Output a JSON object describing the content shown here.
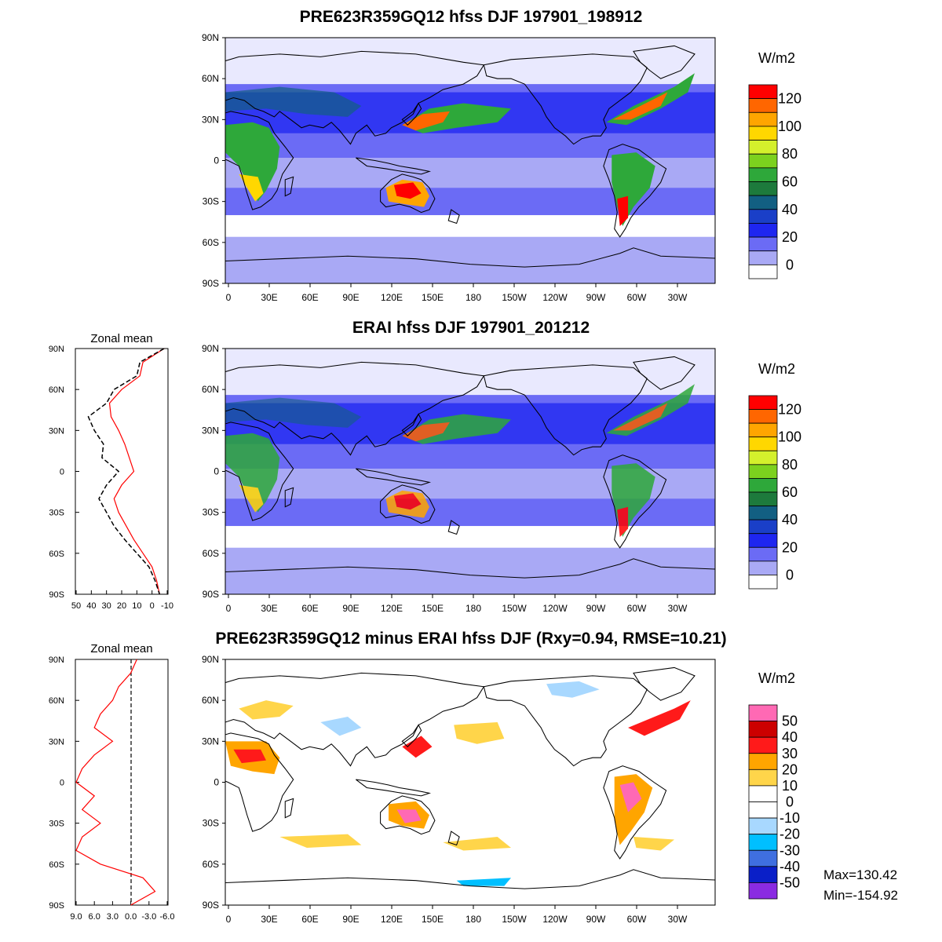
{
  "panels": [
    {
      "id": "model",
      "title": "PRE623R359GQ12 hfss DJF 197901_198912",
      "colorbar": {
        "unit": "W/m2",
        "labels": [
          "120",
          "100",
          "80",
          "60",
          "40",
          "20",
          "0"
        ],
        "colors": [
          "#ff0000",
          "#ff6600",
          "#ffa500",
          "#ffd700",
          "#d4f02c",
          "#7cd11e",
          "#2ea83a",
          "#1d7a3c",
          "#125f82",
          "#1a3fc8",
          "#1e26f0",
          "#6b6bf5",
          "#a9a9f5",
          "#ffffff"
        ]
      }
    },
    {
      "id": "erai",
      "title": "ERAI hfss DJF 197901_201212",
      "colorbar": {
        "unit": "W/m2",
        "labels": [
          "120",
          "100",
          "80",
          "60",
          "40",
          "20",
          "0"
        ],
        "colors": [
          "#ff0000",
          "#ff6600",
          "#ffa500",
          "#ffd700",
          "#d4f02c",
          "#7cd11e",
          "#2ea83a",
          "#1d7a3c",
          "#125f82",
          "#1a3fc8",
          "#1e26f0",
          "#6b6bf5",
          "#a9a9f5",
          "#ffffff"
        ]
      },
      "zonal_mean": {
        "title": "Zonal mean",
        "x_ticks": [
          "50",
          "40",
          "30",
          "20",
          "10",
          "0",
          "-10"
        ]
      }
    },
    {
      "id": "diff",
      "title": "PRE623R359GQ12 minus ERAI hfss DJF (Rxy=0.94, RMSE=10.21)",
      "colorbar": {
        "unit": "W/m2",
        "labels": [
          "50",
          "40",
          "30",
          "20",
          "10",
          "0",
          "-10",
          "-20",
          "-30",
          "-40",
          "-50"
        ],
        "colors": [
          "#ff69b4",
          "#cc0000",
          "#ff1a1a",
          "#ffa500",
          "#ffd54a",
          "#ffffff",
          "#ffffff",
          "#a8d8ff",
          "#00bfff",
          "#3f6fe0",
          "#0a1fc8",
          "#8a2be2"
        ]
      },
      "zonal_mean": {
        "title": "Zonal mean",
        "x_ticks": [
          "9.0",
          "6.0",
          "3.0",
          "0.0",
          "-3.0",
          "-6.0"
        ]
      },
      "stats": {
        "max": "Max=130.42",
        "min": "Min=-154.92"
      }
    }
  ],
  "lat_labels": [
    "90N",
    "60N",
    "30N",
    "0",
    "30S",
    "60S",
    "90S"
  ],
  "lon_labels": [
    "0",
    "30E",
    "60E",
    "90E",
    "120E",
    "150E",
    "180",
    "150W",
    "120W",
    "90W",
    "60W",
    "30W"
  ],
  "zonal_profiles": {
    "lat": [
      90,
      80,
      70,
      60,
      50,
      40,
      30,
      20,
      10,
      0,
      -10,
      -20,
      -30,
      -40,
      -50,
      -60,
      -70,
      -80,
      -90
    ],
    "erai_model": [
      -8,
      8,
      10,
      25,
      30,
      42,
      38,
      32,
      33,
      22,
      30,
      35,
      30,
      25,
      18,
      10,
      2,
      -2,
      -5
    ],
    "erai_obs": [
      -8,
      6,
      8,
      20,
      28,
      27,
      22,
      18,
      15,
      12,
      20,
      25,
      22,
      17,
      12,
      6,
      0,
      -3,
      -5
    ],
    "diff": [
      -1,
      0,
      2,
      3,
      5,
      6,
      3,
      6,
      8,
      9,
      6,
      8,
      5,
      8,
      9,
      5,
      -2,
      -4,
      0
    ]
  }
}
